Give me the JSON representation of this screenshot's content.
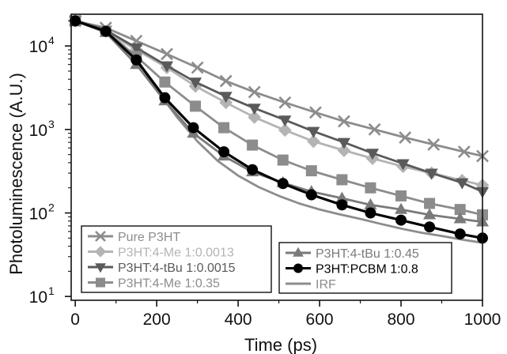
{
  "chart_data": {
    "type": "line",
    "title": "",
    "xlabel": "Time (ps)",
    "ylabel": "Photoluminescence (A.U.)",
    "xlim": [
      -10,
      1000
    ],
    "ylim": [
      9,
      24000
    ],
    "y_scale": "log",
    "grid": false,
    "legend_placement": "bottom-left",
    "x_ticks": [
      {
        "value": 0,
        "label": "0"
      },
      {
        "value": 200,
        "label": "200"
      },
      {
        "value": 400,
        "label": "400"
      },
      {
        "value": 600,
        "label": "600"
      },
      {
        "value": 800,
        "label": "800"
      },
      {
        "value": 1000,
        "label": "1000"
      }
    ],
    "y_ticks": [
      {
        "value": 10,
        "label": "10",
        "exp": "1"
      },
      {
        "value": 100,
        "label": "10",
        "exp": "2"
      },
      {
        "value": 1000,
        "label": "10",
        "exp": "3"
      },
      {
        "value": 10000,
        "label": "10",
        "exp": "4"
      }
    ],
    "legend_left": [
      0,
      1,
      2,
      3
    ],
    "legend_right": [
      4,
      5,
      6
    ],
    "series": [
      {
        "name": "Pure P3HT",
        "color": "#8c8c8c",
        "marker": "x",
        "x": [
          0,
          75,
          150,
          225,
          300,
          370,
          440,
          515,
          590,
          660,
          735,
          810,
          880,
          955,
          1000
        ],
        "y": [
          20000,
          16500,
          11500,
          8000,
          5500,
          3800,
          2800,
          2100,
          1600,
          1250,
          1000,
          800,
          660,
          540,
          480
        ]
      },
      {
        "name": "P3HT:4-Me 1:0.0013",
        "color": "#b4b4b4",
        "marker": "diamond",
        "x": [
          0,
          75,
          150,
          225,
          295,
          370,
          440,
          515,
          585,
          660,
          730,
          805,
          875,
          950,
          1000
        ],
        "y": [
          20000,
          15000,
          9000,
          5500,
          3300,
          2100,
          1400,
          980,
          720,
          560,
          450,
          360,
          300,
          245,
          215
        ]
      },
      {
        "name": "P3HT:4-tBu 1:0.0015",
        "color": "#5a5a5a",
        "marker": "triangle-down",
        "x": [
          0,
          75,
          150,
          225,
          295,
          370,
          440,
          515,
          585,
          660,
          730,
          805,
          875,
          950,
          1000
        ],
        "y": [
          20000,
          15500,
          9500,
          5800,
          3700,
          2500,
          1800,
          1300,
          950,
          700,
          520,
          390,
          300,
          230,
          180
        ]
      },
      {
        "name": "P3HT:4-Me 1:0.35",
        "color": "#8c8c8c",
        "marker": "square",
        "x": [
          0,
          75,
          150,
          220,
          295,
          365,
          435,
          510,
          580,
          655,
          725,
          800,
          870,
          945,
          1000
        ],
        "y": [
          20000,
          15000,
          7500,
          3700,
          1900,
          1050,
          650,
          430,
          320,
          250,
          200,
          160,
          130,
          110,
          95
        ]
      },
      {
        "name": "P3HT:4-tBu 1:0.45",
        "color": "#7a7a7a",
        "marker": "triangle-up",
        "x": [
          0,
          75,
          150,
          220,
          290,
          365,
          435,
          510,
          580,
          655,
          725,
          800,
          870,
          945,
          1000
        ],
        "y": [
          20000,
          14500,
          6000,
          2200,
          900,
          480,
          310,
          230,
          180,
          150,
          125,
          110,
          95,
          85,
          78
        ]
      },
      {
        "name": "P3HT:PCBM 1:0.8",
        "color": "#000000",
        "marker": "circle",
        "x": [
          0,
          75,
          150,
          220,
          290,
          365,
          435,
          510,
          580,
          655,
          725,
          800,
          870,
          945,
          1000
        ],
        "y": [
          20000,
          15000,
          6800,
          2400,
          1050,
          540,
          330,
          225,
          165,
          125,
          100,
          82,
          68,
          56,
          50
        ]
      },
      {
        "name": "IRF",
        "color": "#8c8c8c",
        "marker": "none",
        "x": [
          0,
          60,
          120,
          160,
          200,
          250,
          300,
          350,
          400,
          450,
          500,
          550,
          600,
          650,
          700,
          750,
          800,
          850,
          900,
          950,
          1000
        ],
        "y": [
          20000,
          17000,
          10000,
          6000,
          3000,
          1400,
          720,
          420,
          280,
          205,
          160,
          130,
          110,
          96,
          85,
          74,
          65,
          58,
          53,
          48,
          44
        ]
      }
    ]
  }
}
